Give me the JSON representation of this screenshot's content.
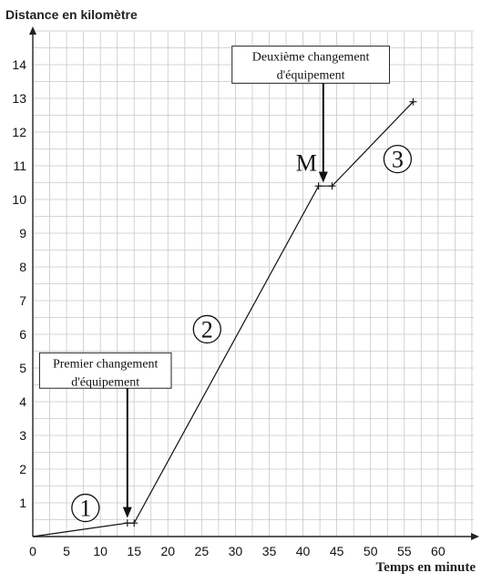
{
  "chart_data": {
    "type": "line",
    "ylabel": "Distance en kilomètre",
    "xlabel": "Temps en minute",
    "xlim": [
      0,
      65
    ],
    "ylim": [
      0,
      15
    ],
    "x_ticks": [
      0,
      5,
      10,
      15,
      20,
      25,
      30,
      35,
      40,
      45,
      50,
      55,
      60
    ],
    "y_ticks": [
      1,
      2,
      3,
      4,
      5,
      6,
      7,
      8,
      9,
      10,
      11,
      12,
      13,
      14
    ],
    "minor_grid_step": {
      "x": 2.5,
      "y": 0.5
    },
    "grid": true,
    "series": [
      {
        "points": [
          {
            "x": 0,
            "y": 0
          },
          {
            "x": 14,
            "y": 0.4
          },
          {
            "x": 15,
            "y": 0.4
          },
          {
            "x": 42.3,
            "y": 10.4
          },
          {
            "x": 44.3,
            "y": 10.4
          },
          {
            "x": 56.3,
            "y": 12.9
          }
        ]
      }
    ],
    "markers": [
      {
        "x": 14,
        "y": 0.4
      },
      {
        "x": 15,
        "y": 0.4
      },
      {
        "x": 42.3,
        "y": 10.4
      },
      {
        "x": 44.3,
        "y": 10.4
      },
      {
        "x": 56.3,
        "y": 12.9
      }
    ],
    "annotations": [
      {
        "lines": [
          "Premier changement",
          "d'équipement"
        ],
        "box_x": [
          1,
          20.5
        ],
        "box_y": [
          4.4,
          5.45
        ],
        "arrow_from": {
          "x": 14,
          "y": 4.4
        },
        "arrow_to": {
          "x": 14,
          "y": 0.55
        }
      },
      {
        "lines": [
          "Deuxième changement",
          "d'équipement"
        ],
        "box_x": [
          29.5,
          52.8
        ],
        "box_y": [
          13.45,
          14.55
        ],
        "arrow_from": {
          "x": 43,
          "y": 13.45
        },
        "arrow_to": {
          "x": 43,
          "y": 10.5
        }
      }
    ],
    "segment_labels": [
      {
        "text": "1",
        "x": 7.8,
        "y": 0.85
      },
      {
        "text": "2",
        "x": 25.8,
        "y": 6.15
      },
      {
        "text": "3",
        "x": 54,
        "y": 11.2
      }
    ],
    "point_labels": [
      {
        "text": "M",
        "x": 40.5,
        "y": 10.85
      }
    ]
  }
}
